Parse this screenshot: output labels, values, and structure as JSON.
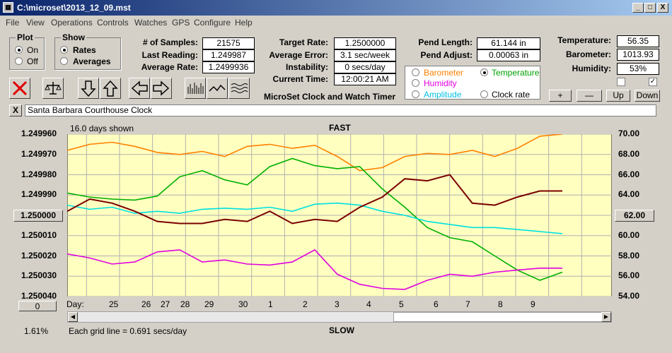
{
  "window": {
    "title": "C:\\microset\\2013_12_09.mst",
    "min": "_",
    "max": "□",
    "close": "X"
  },
  "menu": [
    "File",
    "View",
    "Operations",
    "Controls",
    "Watches",
    "GPS",
    "Configure",
    "Help"
  ],
  "plot_group": {
    "title": "Plot",
    "on": "On",
    "off": "Off"
  },
  "show_group": {
    "title": "Show",
    "rates": "Rates",
    "averages": "Averages"
  },
  "stats": {
    "samples_label": "# of Samples:",
    "samples": "21575",
    "last_label": "Last Reading:",
    "last": "1.249987",
    "avgrate_label": "Average Rate:",
    "avgrate": "1.2499936",
    "target_label": "Target Rate:",
    "target": "1.2500000",
    "averr_label": "Average Error:",
    "averr": "3.1 sec/week",
    "instab_label": "Instability:",
    "instab": "0 secs/day",
    "time_label": "Current Time:",
    "time": "12:00:21 AM",
    "pendlen_label": "Pend Length:",
    "pendlen": "61.144 in",
    "pendadj_label": "Pend Adjust:",
    "pendadj": "0.00063 in",
    "temp_label": "Temperature:",
    "temp": "56.35",
    "baro_label": "Barometer:",
    "baro": "1013.93",
    "hum_label": "Humidity:",
    "hum": "53%"
  },
  "subtitle": "MicroSet Clock and Watch Timer",
  "aux": {
    "barometer": "Barometer",
    "temperature": "Temperature",
    "humidity": "Humidity",
    "amplitude": "Amplitude",
    "clockrate": "Clock rate"
  },
  "small_buttons": {
    "plus": "+",
    "minus": "—",
    "up": "Up",
    "down": "Down"
  },
  "colors": {
    "barometer": "#ff8000",
    "temperature": "#00b000",
    "humidity": "#e000e0",
    "amplitude": "#00e0e0",
    "rate": "#7a0000",
    "plot_bg": "#ffffc0"
  },
  "clock_name": "Santa Barbara Courthouse Clock",
  "close_x": "X",
  "chart_data": {
    "type": "line",
    "top_label": "FAST",
    "bottom_label": "SLOW",
    "days_shown": "16.0 days shown",
    "grid_note": "Each grid line = 0.691 secs/day",
    "percent": "1.61%",
    "left_button": "1.250000",
    "right_button": "62.00",
    "bottom_button": "0",
    "day_label": "Day:",
    "y_left_ticks": [
      "1.249960",
      "1.249970",
      "1.249980",
      "1.249990",
      "1.250000",
      "1.250010",
      "1.250020",
      "1.250030",
      "1.250040"
    ],
    "y_right_ticks": [
      "70.00",
      "68.00",
      "66.00",
      "64.00",
      "62.00",
      "60.00",
      "58.00",
      "56.00",
      "54.00"
    ],
    "y_left_range": [
      1.24996,
      1.25004
    ],
    "y_right_range": [
      54,
      70
    ],
    "x_ticks": [
      "25",
      "26",
      "27",
      "28",
      "29",
      "30",
      "1",
      "2",
      "3",
      "4",
      "5",
      "6",
      "7",
      "8",
      "9"
    ],
    "series": [
      {
        "name": "Barometer",
        "color": "#ff8000",
        "axis": "right",
        "values": [
          68.4,
          69.0,
          69.2,
          68.8,
          68.2,
          68.0,
          68.3,
          67.8,
          68.8,
          69.0,
          68.6,
          68.9,
          67.8,
          66.4,
          66.7,
          67.8,
          68.1,
          68.0,
          68.4,
          67.8,
          68.6,
          69.8,
          70.0
        ]
      },
      {
        "name": "Temperature",
        "color": "#00b000",
        "axis": "right",
        "values": [
          64.2,
          63.8,
          63.6,
          63.5,
          63.9,
          65.8,
          66.4,
          65.5,
          65.0,
          66.8,
          67.6,
          66.9,
          66.6,
          66.8,
          64.6,
          62.8,
          60.8,
          59.8,
          59.4,
          58.0,
          56.6,
          55.6,
          56.4
        ]
      },
      {
        "name": "Humidity",
        "color": "#e000e0",
        "axis": "right",
        "values": [
          58.2,
          57.8,
          57.2,
          57.4,
          58.4,
          58.6,
          57.4,
          57.6,
          57.2,
          57.1,
          57.4,
          58.6,
          56.2,
          55.2,
          54.8,
          54.7,
          55.6,
          56.2,
          56.0,
          56.4,
          56.6,
          56.8,
          56.8
        ]
      },
      {
        "name": "Amplitude",
        "color": "#00e0e0",
        "axis": "right",
        "values": [
          63.0,
          62.6,
          62.8,
          62.2,
          62.4,
          62.2,
          62.6,
          62.7,
          62.6,
          62.8,
          62.4,
          63.1,
          63.2,
          63.0,
          62.4,
          62.0,
          61.4,
          61.1,
          60.8,
          60.8,
          60.6,
          60.4,
          60.2
        ]
      },
      {
        "name": "Rate",
        "color": "#7a0000",
        "axis": "left",
        "values": [
          1.249998,
          1.249992,
          1.249994,
          1.249998,
          1.250003,
          1.250004,
          1.250004,
          1.250002,
          1.250003,
          1.249998,
          1.250004,
          1.250002,
          1.250003,
          1.249996,
          1.249991,
          1.249982,
          1.249983,
          1.24998,
          1.249994,
          1.249995,
          1.249991,
          1.249988,
          1.249988
        ]
      }
    ]
  }
}
